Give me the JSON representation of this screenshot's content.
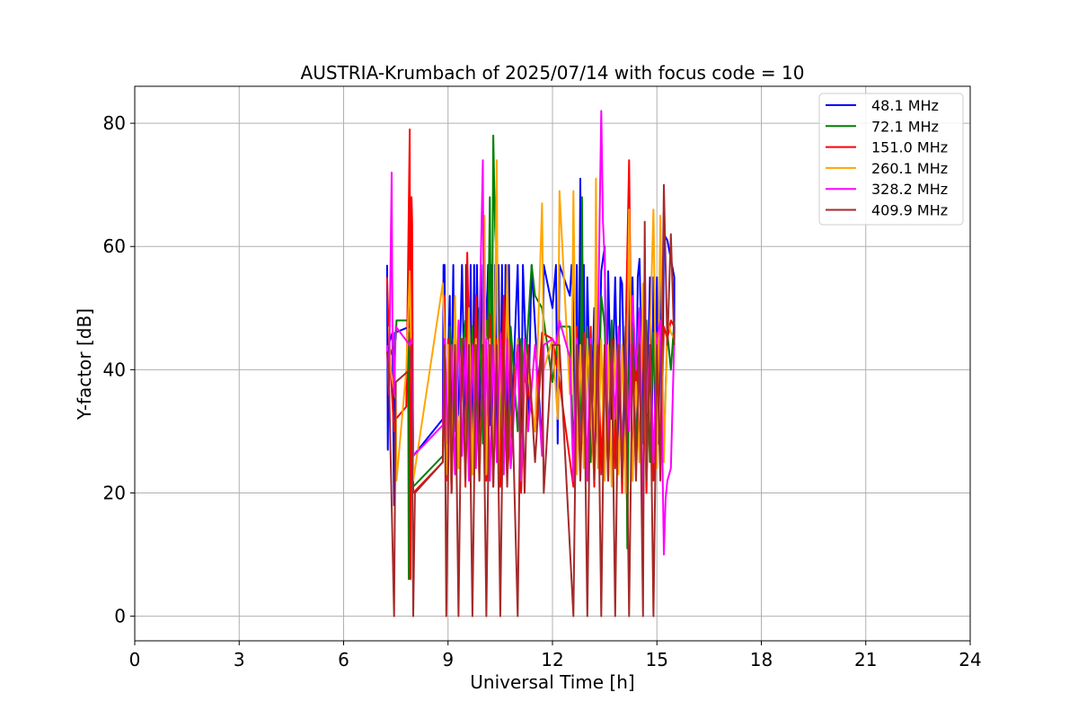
{
  "chart_data": {
    "type": "line",
    "title": "AUSTRIA-Krumbach of 2025/07/14 with focus code = 10",
    "xlabel": "Universal Time [h]",
    "ylabel": "Y-factor [dB]",
    "xlim": [
      0,
      24
    ],
    "ylim": [
      -4,
      86
    ],
    "xticks": [
      0,
      3,
      6,
      9,
      12,
      15,
      18,
      21,
      24
    ],
    "yticks": [
      0,
      20,
      40,
      60,
      80
    ],
    "grid": true,
    "legend_position": "top-right",
    "series": [
      {
        "name": " 48.1 MHz",
        "color": "#0000ff",
        "x": [
          7.25,
          7.27,
          7.29,
          7.4,
          7.45,
          7.47,
          7.9,
          7.92,
          7.95,
          8.0,
          8.85,
          8.87,
          8.9,
          8.93,
          9.05,
          9.08,
          9.15,
          9.18,
          9.3,
          9.4,
          9.5,
          9.52,
          9.6,
          9.65,
          9.7,
          9.75,
          9.8,
          9.83,
          9.9,
          9.95,
          10.0,
          10.05,
          10.1,
          10.15,
          10.2,
          10.25,
          10.3,
          10.35,
          10.4,
          10.45,
          10.5,
          10.55,
          10.6,
          10.65,
          10.7,
          10.75,
          10.8,
          11.0,
          11.1,
          11.15,
          11.3,
          11.4,
          11.7,
          11.75,
          12.0,
          12.1,
          12.15,
          12.2,
          12.5,
          12.55,
          12.6,
          12.65,
          12.7,
          12.75,
          12.8,
          12.85,
          12.9,
          12.95,
          13.0,
          13.1,
          13.2,
          13.3,
          13.4,
          13.5,
          13.55,
          13.6,
          13.7,
          13.8,
          13.9,
          13.95,
          14.0,
          14.1,
          14.15,
          14.2,
          14.25,
          14.3,
          14.4,
          14.45,
          14.5,
          14.6,
          14.65,
          14.7,
          14.8,
          14.85,
          14.9,
          14.95,
          15.0,
          15.05,
          15.1,
          15.15,
          15.2,
          15.3,
          15.5,
          15.5
        ],
        "y": [
          57,
          27,
          44,
          46,
          18,
          46,
          47,
          57,
          57,
          26,
          32,
          57,
          57,
          25,
          52,
          31,
          57,
          30,
          33,
          57,
          28,
          57,
          30,
          57,
          27,
          57,
          33,
          57,
          28,
          57,
          30,
          56,
          46,
          57,
          31,
          57,
          27,
          57,
          30,
          57,
          28,
          57,
          26,
          57,
          31,
          57,
          28,
          57,
          27,
          57,
          32,
          57,
          27,
          57,
          50,
          57,
          28,
          57,
          52,
          57,
          50,
          28,
          57,
          28,
          71,
          28,
          57,
          28,
          55,
          30,
          50,
          28,
          56,
          60,
          28,
          56,
          32,
          55,
          28,
          55,
          54,
          28,
          17,
          54,
          34,
          55,
          28,
          55,
          58,
          30,
          55,
          28,
          55,
          28,
          55,
          30,
          55,
          28,
          55,
          30,
          62,
          61,
          55,
          45
        ]
      },
      {
        "name": " 72.1 MHz",
        "color": "#008000",
        "x": [
          7.3,
          7.32,
          7.5,
          7.52,
          7.85,
          7.87,
          7.9,
          7.92,
          8.0,
          8.85,
          8.9,
          9.0,
          9.05,
          9.1,
          9.15,
          9.2,
          9.3,
          9.4,
          9.5,
          9.6,
          9.7,
          9.8,
          9.9,
          10.0,
          10.1,
          10.15,
          10.2,
          10.25,
          10.3,
          10.35,
          10.4,
          10.5,
          10.6,
          10.7,
          10.8,
          11.0,
          11.1,
          11.2,
          11.4,
          11.5,
          11.7,
          12.0,
          12.2,
          12.5,
          12.6,
          12.7,
          12.8,
          12.85,
          12.9,
          13.0,
          13.1,
          13.2,
          13.3,
          13.4,
          13.5,
          13.6,
          13.7,
          13.8,
          13.9,
          14.0,
          14.1,
          14.15,
          14.2,
          14.3,
          14.4,
          14.5,
          14.6,
          14.7,
          14.8,
          14.9,
          15.0,
          15.1,
          15.2,
          15.3,
          15.4,
          15.5
        ],
        "y": [
          46,
          42,
          45,
          48,
          48,
          6,
          46,
          40,
          21,
          26,
          45,
          28,
          47,
          20,
          45,
          30,
          47,
          42,
          48,
          28,
          47,
          28,
          50,
          28,
          48,
          45,
          68,
          30,
          78,
          63,
          57,
          28,
          50,
          26,
          47,
          30,
          45,
          38,
          57,
          52,
          50,
          38,
          47,
          47,
          26,
          47,
          30,
          68,
          26,
          47,
          25,
          44,
          28,
          52,
          47,
          28,
          48,
          28,
          47,
          25,
          47,
          11,
          40,
          47,
          26,
          47,
          28,
          48,
          25,
          46,
          28,
          48,
          28,
          46,
          40,
          48
        ]
      },
      {
        "name": "151.0 MHz",
        "color": "#ff0000",
        "x": [
          7.25,
          7.3,
          7.45,
          7.5,
          7.8,
          7.9,
          7.92,
          7.95,
          7.97,
          8.0,
          8.85,
          8.9,
          8.95,
          9.0,
          9.1,
          9.2,
          9.3,
          9.4,
          9.5,
          9.55,
          9.6,
          9.7,
          9.8,
          9.9,
          10.0,
          10.1,
          10.2,
          10.3,
          10.4,
          10.5,
          10.6,
          10.7,
          11.0,
          11.1,
          11.2,
          11.5,
          11.7,
          12.0,
          12.2,
          12.6,
          12.7,
          12.8,
          12.9,
          13.0,
          13.1,
          13.2,
          13.3,
          13.4,
          13.5,
          13.6,
          13.7,
          13.8,
          13.9,
          14.0,
          14.1,
          14.2,
          14.3,
          14.4,
          14.5,
          14.6,
          14.7,
          14.8,
          14.9,
          15.0,
          15.1,
          15.2,
          15.3,
          15.4,
          15.5
        ],
        "y": [
          55,
          45,
          30,
          32,
          34,
          79,
          6,
          68,
          64,
          20,
          25,
          52,
          22,
          45,
          20,
          48,
          24,
          45,
          21,
          59,
          45,
          23,
          52,
          22,
          45,
          22,
          49,
          21,
          45,
          21,
          52,
          23,
          45,
          20,
          40,
          30,
          46,
          45,
          38,
          21,
          47,
          23,
          46,
          22,
          47,
          21,
          46,
          23,
          44,
          22,
          45,
          24,
          46,
          20,
          45,
          74,
          22,
          43,
          25,
          48,
          20,
          46,
          22,
          46,
          25,
          47,
          45,
          48,
          47
        ]
      },
      {
        "name": "260.1 MHz",
        "color": "#ffa500",
        "x": [
          7.3,
          7.35,
          7.5,
          7.52,
          7.8,
          7.9,
          7.95,
          8.0,
          8.85,
          8.9,
          8.95,
          9.0,
          9.1,
          9.2,
          9.3,
          9.4,
          9.5,
          9.6,
          9.7,
          9.8,
          9.9,
          10.0,
          10.05,
          10.1,
          10.2,
          10.3,
          10.4,
          10.45,
          10.5,
          10.6,
          10.7,
          10.8,
          11.0,
          11.1,
          11.2,
          11.5,
          11.7,
          11.75,
          12.0,
          12.15,
          12.2,
          12.5,
          12.55,
          12.6,
          12.7,
          12.8,
          12.9,
          13.0,
          13.2,
          13.25,
          13.3,
          13.4,
          13.5,
          13.6,
          13.7,
          13.8,
          13.9,
          14.0,
          14.1,
          14.2,
          14.3,
          14.4,
          14.5,
          14.6,
          14.7,
          14.8,
          14.9,
          15.0,
          15.1,
          15.2,
          15.3,
          15.4,
          15.5
        ],
        "y": [
          47,
          40,
          35,
          22,
          40,
          56,
          40,
          22,
          54,
          45,
          23,
          44,
          21,
          52,
          24,
          45,
          22,
          50,
          23,
          45,
          22,
          44,
          65,
          23,
          45,
          24,
          74,
          22,
          44,
          23,
          57,
          24,
          45,
          22,
          44,
          30,
          67,
          40,
          45,
          32,
          69,
          36,
          36,
          69,
          23,
          44,
          24,
          45,
          22,
          71,
          24,
          45,
          22,
          44,
          21,
          45,
          23,
          44,
          20,
          66,
          22,
          38,
          25,
          54,
          22,
          45,
          66,
          24,
          65,
          25,
          48,
          46,
          45
        ]
      },
      {
        "name": "328.2 MHz",
        "color": "#ff00ff",
        "x": [
          7.25,
          7.3,
          7.38,
          7.4,
          7.45,
          7.5,
          7.9,
          7.95,
          8.0,
          8.85,
          8.9,
          9.0,
          9.1,
          9.2,
          9.3,
          9.4,
          9.5,
          9.6,
          9.7,
          9.8,
          9.9,
          10.0,
          10.05,
          10.1,
          10.2,
          10.3,
          10.4,
          10.5,
          10.6,
          10.7,
          10.8,
          11.0,
          11.1,
          11.2,
          11.3,
          11.5,
          11.7,
          11.75,
          12.0,
          12.1,
          12.2,
          12.5,
          12.6,
          12.7,
          12.8,
          12.9,
          13.0,
          13.1,
          13.2,
          13.3,
          13.4,
          13.45,
          13.5,
          13.6,
          13.7,
          13.8,
          13.9,
          14.0,
          14.1,
          14.2,
          14.3,
          14.4,
          14.5,
          14.6,
          14.65,
          14.7,
          14.8,
          14.9,
          15.0,
          15.1,
          15.2,
          15.25,
          15.3,
          15.4,
          15.5
        ],
        "y": [
          44,
          36,
          72,
          48,
          36,
          47,
          44,
          45,
          26,
          31,
          45,
          28,
          44,
          23,
          48,
          26,
          45,
          22,
          44,
          24,
          46,
          74,
          23,
          45,
          22,
          44,
          25,
          46,
          23,
          45,
          24,
          44,
          22,
          45,
          30,
          44,
          26,
          44,
          45,
          44,
          48,
          42,
          22,
          45,
          24,
          44,
          22,
          45,
          23,
          44,
          82,
          64,
          58,
          26,
          44,
          32,
          47,
          25,
          44,
          30,
          52,
          40,
          50,
          11,
          60,
          33,
          44,
          25,
          45,
          48,
          10,
          19,
          22,
          24,
          45
        ]
      },
      {
        "name": "409.9 MHz",
        "color": "#a52a2a",
        "x": [
          7.25,
          7.3,
          7.45,
          7.5,
          7.9,
          7.95,
          8.0,
          8.05,
          8.85,
          8.9,
          8.95,
          9.0,
          9.05,
          9.1,
          9.2,
          9.3,
          9.4,
          9.5,
          9.6,
          9.7,
          9.8,
          9.9,
          10.0,
          10.1,
          10.2,
          10.3,
          10.4,
          10.5,
          10.6,
          10.7,
          10.8,
          11.0,
          11.1,
          11.2,
          11.3,
          11.5,
          11.7,
          11.75,
          12.0,
          12.2,
          12.6,
          12.7,
          12.8,
          12.9,
          13.0,
          13.1,
          13.2,
          13.3,
          13.4,
          13.5,
          13.6,
          13.7,
          13.8,
          13.9,
          14.0,
          14.1,
          14.2,
          14.3,
          14.4,
          14.5,
          14.6,
          14.65,
          14.7,
          14.8,
          14.9,
          15.0,
          15.1,
          15.2,
          15.3,
          15.4,
          15.5
        ],
        "y": [
          43,
          39,
          0,
          38,
          40,
          44,
          0,
          20,
          25,
          44,
          0,
          22,
          44,
          20,
          44,
          0,
          45,
          22,
          44,
          0,
          44,
          22,
          44,
          0,
          44,
          21,
          44,
          0,
          44,
          21,
          44,
          0,
          44,
          20,
          44,
          25,
          44,
          20,
          44,
          44,
          0,
          44,
          22,
          44,
          0,
          44,
          22,
          44,
          0,
          44,
          22,
          44,
          0,
          44,
          22,
          44,
          0,
          44,
          22,
          44,
          0,
          64,
          22,
          44,
          0,
          44,
          22,
          70,
          44,
          62,
          44
        ]
      }
    ]
  }
}
